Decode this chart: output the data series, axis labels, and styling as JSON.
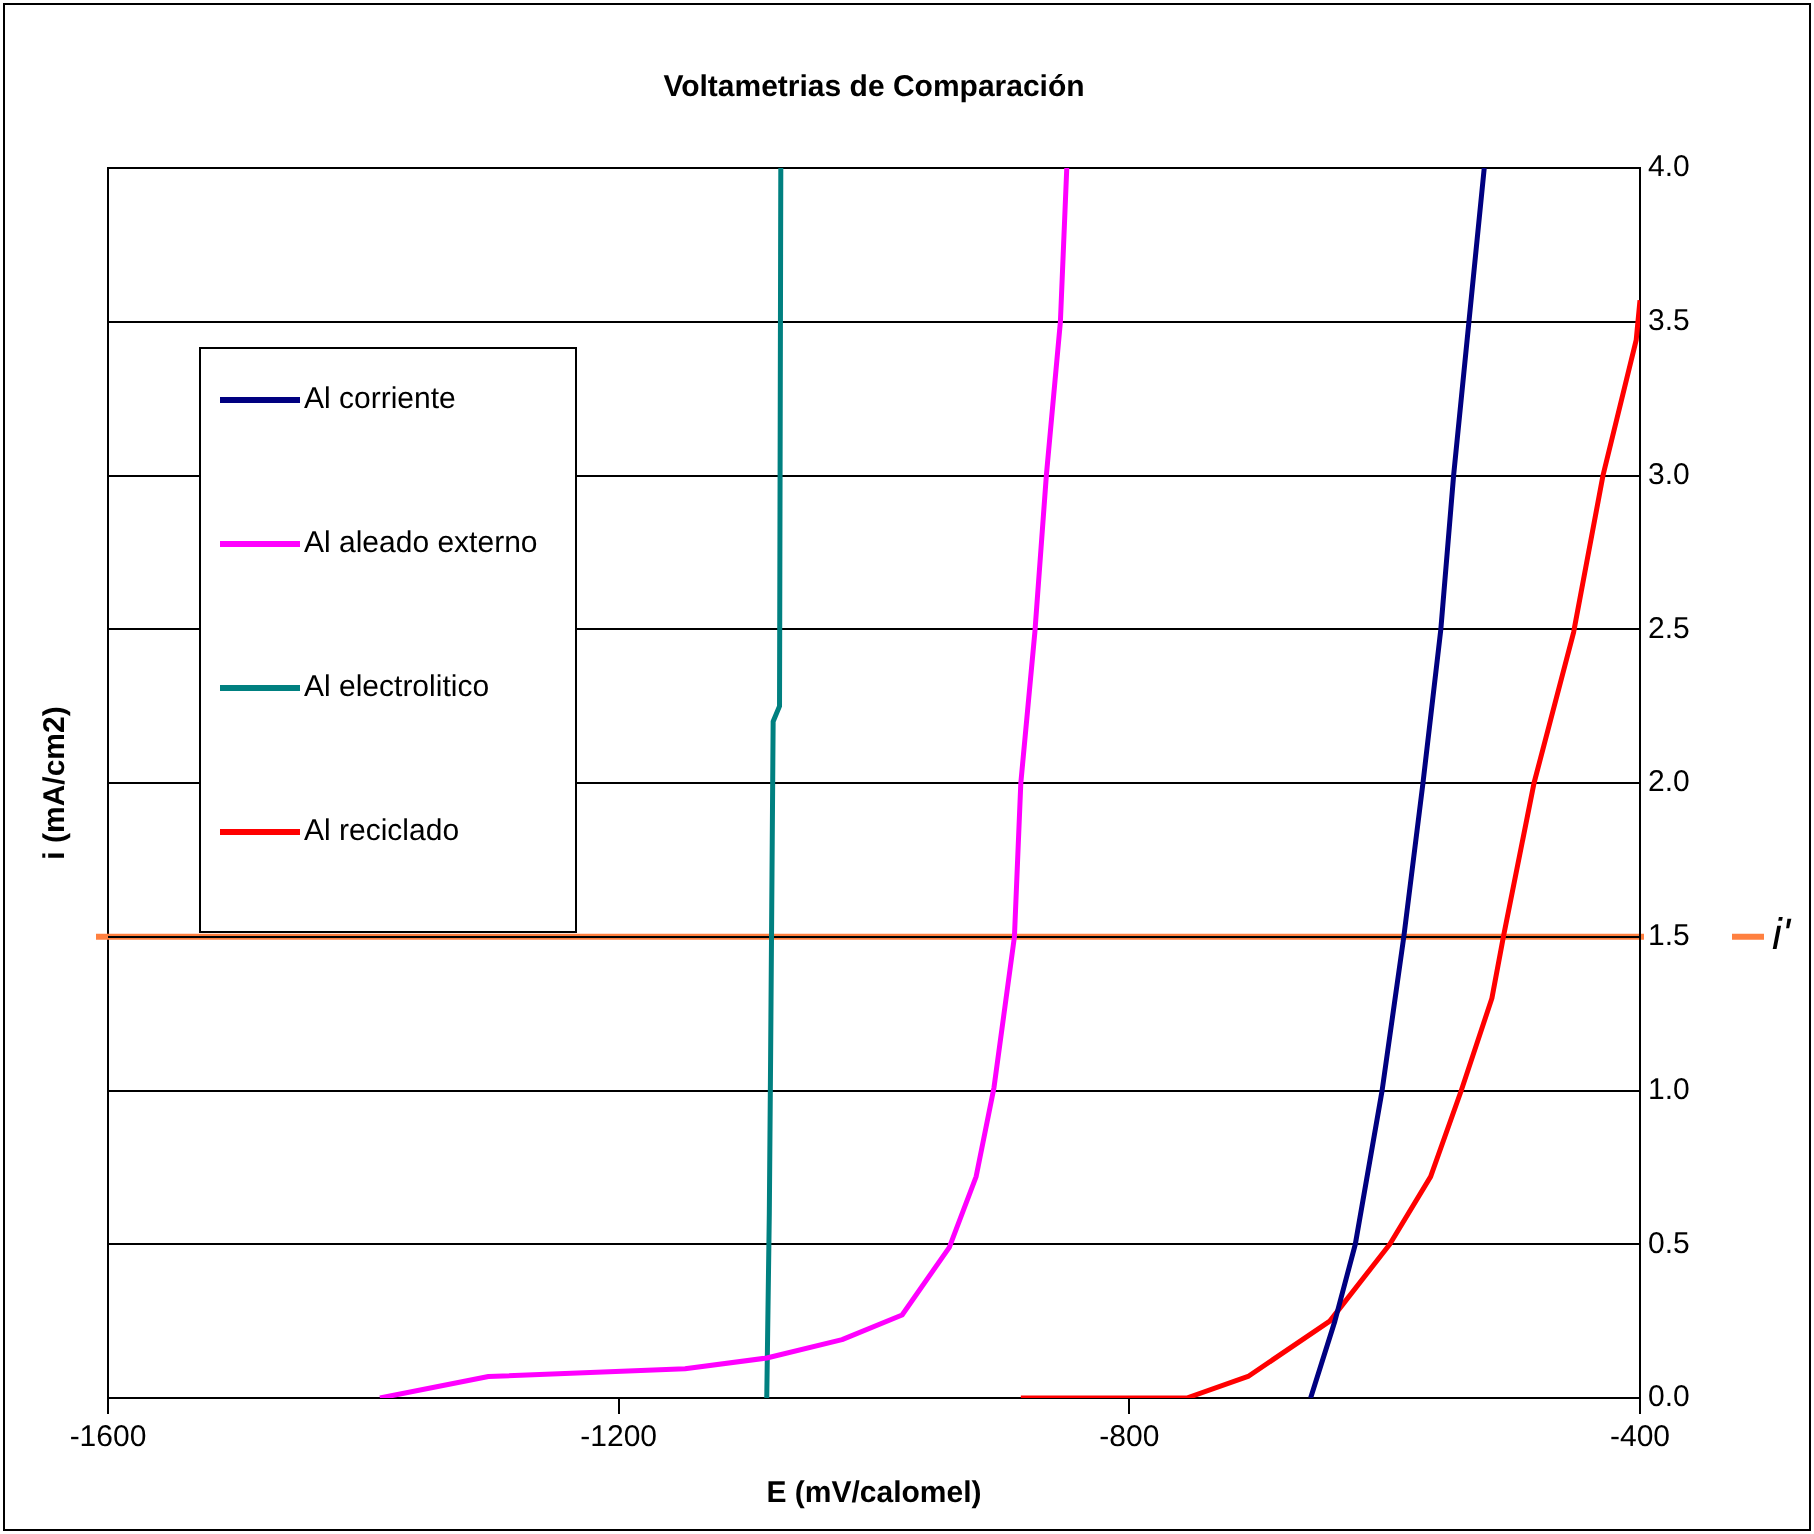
{
  "chart_data": {
    "type": "line",
    "title": "Voltametrias de Comparación",
    "xlabel": "E (mV/calomel)",
    "ylabel": "i (mA/cm2)",
    "xlim": [
      -1600,
      -400
    ],
    "xticks": [
      -1600,
      -1200,
      -800,
      -400
    ],
    "ylim": [
      0,
      4
    ],
    "yticks": [
      {
        "value": 0,
        "label": "0.0"
      },
      {
        "value": 0.5,
        "label": "0.5"
      },
      {
        "value": 1,
        "label": "1.0"
      },
      {
        "value": 1.5,
        "label": "1.5"
      },
      {
        "value": 2,
        "label": "2.0"
      },
      {
        "value": 2.5,
        "label": "2.5"
      },
      {
        "value": 3,
        "label": "3.0"
      },
      {
        "value": 3.5,
        "label": "3.5"
      },
      {
        "value": 4,
        "label": "4.0"
      }
    ],
    "grid": "y",
    "legend": "left",
    "marker": "none",
    "line_style": "solid",
    "ref_lines": [
      {
        "axis": "y",
        "value": 1.5,
        "label": "i'",
        "color": "#ff8040"
      }
    ],
    "series": [
      {
        "name": "Al corriente",
        "color": "#000080",
        "x": [
          -658,
          -639,
          -623,
          -602,
          -585,
          -570,
          -556,
          -546,
          -534,
          -522
        ],
        "values": [
          0,
          0.25,
          0.5,
          1,
          1.5,
          2,
          2.5,
          3,
          3.5,
          4
        ]
      },
      {
        "name": "Al aleado externo",
        "color": "#ff00ff",
        "x": [
          -1387,
          -1302,
          -1148,
          -1084,
          -1025,
          -978,
          -941,
          -920,
          -906,
          -890,
          -885,
          -874,
          -865,
          -854,
          -849
        ],
        "values": [
          0,
          0.07,
          0.095,
          0.13,
          0.19,
          0.27,
          0.49,
          0.72,
          1.01,
          1.5,
          2,
          2.49,
          3,
          3.5,
          4
        ]
      },
      {
        "name": "Al electrolitico",
        "color": "#008080",
        "x": [
          -1084,
          -1082,
          -1081,
          -1079,
          -1074,
          -1073
        ],
        "values": [
          0,
          0.6,
          1.1,
          2.2,
          2.25,
          4
        ]
      },
      {
        "name": "Al reciclado",
        "color": "#ff0000",
        "x": [
          -885,
          -755,
          -707,
          -643,
          -596,
          -564,
          -540,
          -516,
          -507,
          -483,
          -452,
          -429,
          -403,
          -400
        ],
        "values": [
          0,
          0,
          0.07,
          0.25,
          0.5,
          0.72,
          1,
          1.3,
          1.5,
          2,
          2.49,
          3,
          3.44,
          3.57
        ]
      }
    ]
  }
}
